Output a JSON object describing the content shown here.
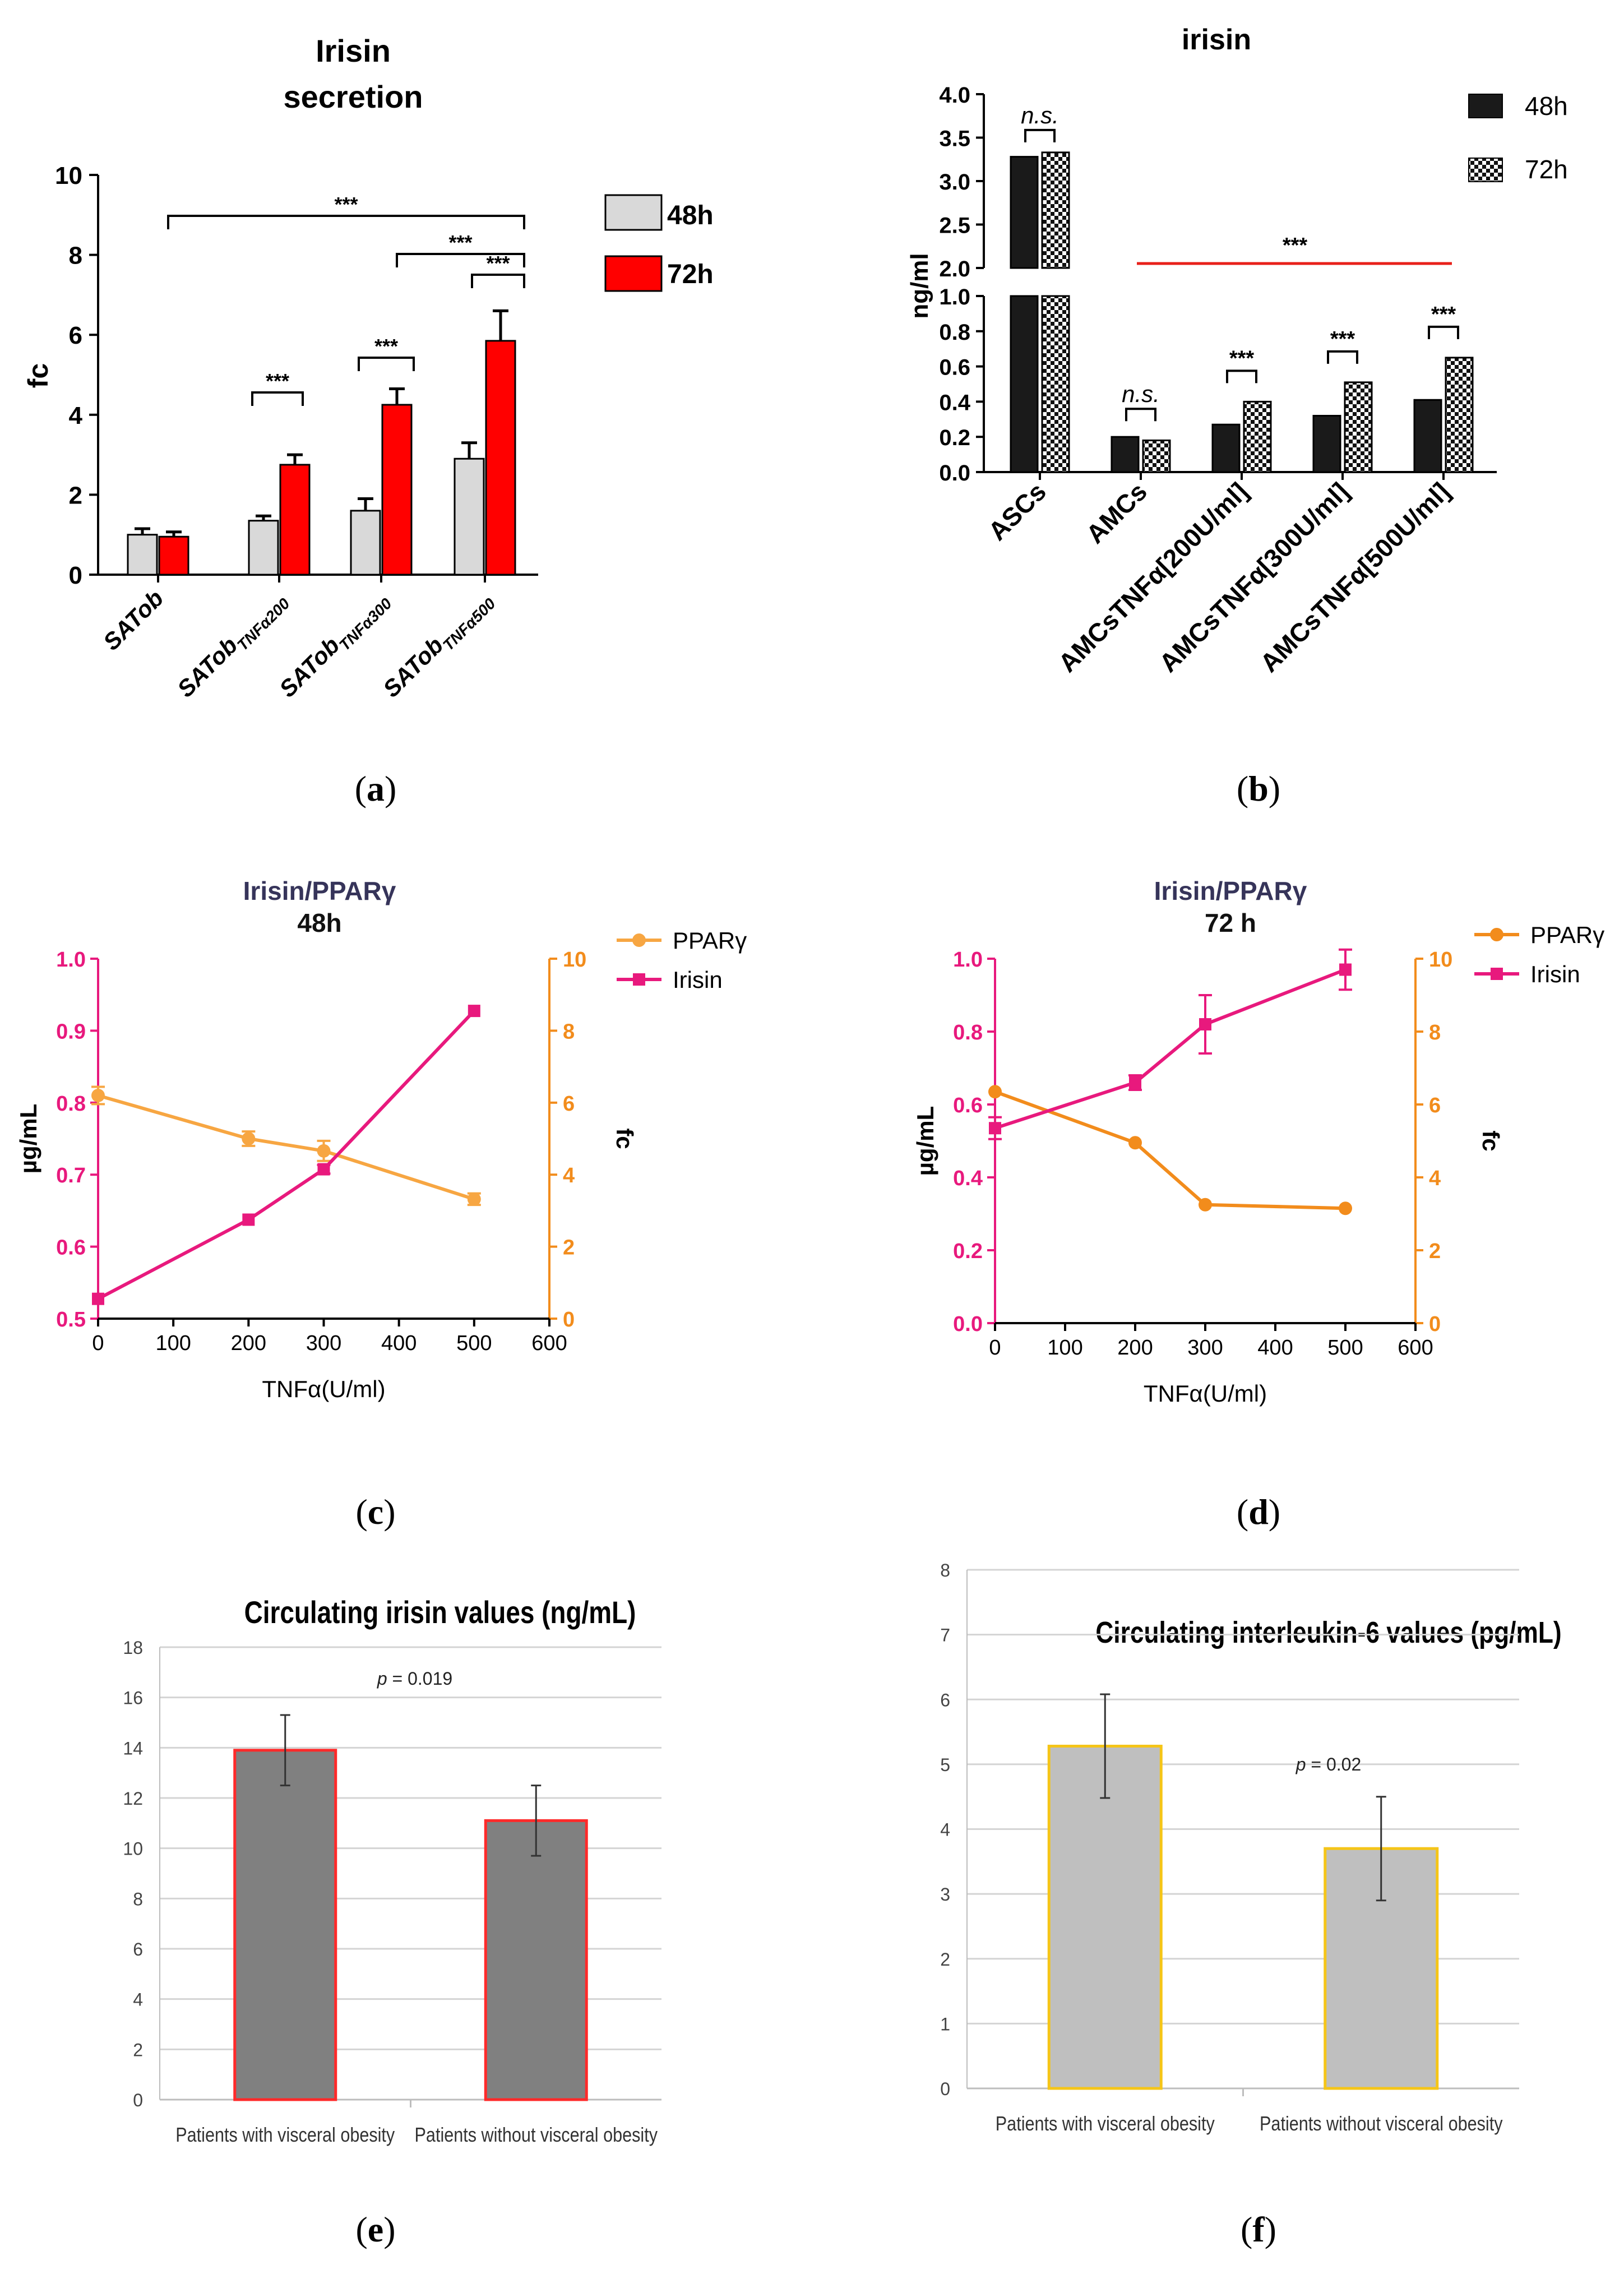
{
  "panels": {
    "a": {
      "caption_open": "(",
      "caption_letter": "a",
      "caption_close": ")",
      "chart_data": {
        "type": "bar",
        "title_line1": "Irisin",
        "title_line2": "secretion",
        "ylabel": "fc",
        "ylim": [
          0,
          10
        ],
        "yticks": [
          "0",
          "2",
          "4",
          "6",
          "8",
          "10"
        ],
        "categories": [
          "SATob",
          "SATobTNFα200",
          "SATobTNFα300",
          "SATobTNFα500"
        ],
        "category_main": [
          "SATob",
          "SATob",
          "SATob",
          "SATob"
        ],
        "category_sub": [
          "",
          "TNFα200",
          "TNFα300",
          "TNFα500"
        ],
        "series": [
          {
            "name": "48h",
            "color": "#d9d9d9",
            "values": [
              1.0,
              1.35,
              1.6,
              2.9
            ],
            "errors": [
              0.15,
              0.12,
              0.3,
              0.4
            ]
          },
          {
            "name": "72h",
            "color": "#ff0000",
            "values": [
              0.95,
              2.75,
              4.25,
              5.85
            ],
            "errors": [
              0.12,
              0.25,
              0.4,
              0.75
            ]
          }
        ],
        "sig_labels": [
          "***",
          "***",
          "***",
          "***",
          "***"
        ]
      }
    },
    "b": {
      "caption_open": "(",
      "caption_letter": "b",
      "caption_close": ")",
      "chart_data": {
        "type": "bar",
        "title": "irisin",
        "ylabel": "ng/ml",
        "yticks_upper": [
          "2.0",
          "2.5",
          "3.0",
          "3.5",
          "4.0"
        ],
        "yticks_lower": [
          "0.0",
          "0.2",
          "0.4",
          "0.6",
          "0.8",
          "1.0"
        ],
        "categories": [
          "ASCs",
          "AMCs",
          "AMCsTNFα[200U/ml]",
          "AMCsTNFα[300U/ml]",
          "AMCsTNFα[500U/ml]"
        ],
        "series": [
          {
            "name": "48h",
            "color": "#1a1a1a",
            "values": [
              3.28,
              0.2,
              0.27,
              0.32,
              0.41
            ]
          },
          {
            "name": "72h",
            "pattern": "checkered",
            "values": [
              3.33,
              0.18,
              0.4,
              0.51,
              0.65
            ]
          }
        ],
        "sig_labels": [
          "n.s.",
          "n.s.",
          "***",
          "***",
          "***",
          "***"
        ]
      }
    },
    "c": {
      "caption_open": "(",
      "caption_letter": "c",
      "caption_close": ")",
      "chart_data": {
        "type": "line",
        "title_line1": "Irisin/PPARγ",
        "title_line2": "48h",
        "xlabel": "TNFα(U/ml)",
        "ylabel_left": "µg/mL",
        "ylabel_right": "fc",
        "xticks": [
          "0",
          "100",
          "200",
          "300",
          "400",
          "500",
          "600"
        ],
        "yticks_left": [
          "0.5",
          "0.6",
          "0.7",
          "0.8",
          "0.9",
          "1.0"
        ],
        "yticks_right": [
          "0",
          "2",
          "4",
          "6",
          "8",
          "10"
        ],
        "xlim": [
          0,
          600
        ],
        "series": [
          {
            "name": "PPARγ",
            "axis": "left",
            "color": "#f7a642",
            "x": [
              0,
              200,
              300,
              500
            ],
            "y": [
              0.81,
              0.75,
              0.733,
              0.666
            ],
            "errors": [
              0.012,
              0.01,
              0.014,
              0.008
            ]
          },
          {
            "name": "Irisin",
            "axis": "right",
            "color": "#e8197d",
            "x": [
              0,
              200,
              300,
              500
            ],
            "y": [
              0.55,
              2.75,
              4.15,
              8.55
            ],
            "errors": [
              0,
              0,
              0.12,
              0
            ]
          }
        ]
      }
    },
    "d": {
      "caption_open": "(",
      "caption_letter": "d",
      "caption_close": ")",
      "chart_data": {
        "type": "line",
        "title_line1": "Irisin/PPARγ",
        "title_line2": "72 h",
        "xlabel": "TNFα(U/ml)",
        "ylabel_left": "µg/mL",
        "ylabel_right": "fc",
        "xticks": [
          "0",
          "100",
          "200",
          "300",
          "400",
          "500",
          "600"
        ],
        "yticks_left": [
          "0.0",
          "0.2",
          "0.4",
          "0.6",
          "0.8",
          "1.0"
        ],
        "yticks_right": [
          "0",
          "2",
          "4",
          "6",
          "8",
          "10"
        ],
        "xlim": [
          0,
          600
        ],
        "series": [
          {
            "name": "PPARγ",
            "axis": "left",
            "color": "#f28c1c",
            "x": [
              0,
              200,
              300,
              500
            ],
            "y": [
              0.635,
              0.495,
              0.325,
              0.315
            ],
            "errors": [
              0,
              0,
              0,
              0
            ]
          },
          {
            "name": "Irisin",
            "axis": "right",
            "color": "#e8197d",
            "x": [
              0,
              200,
              300,
              500
            ],
            "y": [
              5.35,
              6.6,
              8.2,
              9.7
            ],
            "errors": [
              0.3,
              0.2,
              0.8,
              0.55
            ]
          }
        ]
      }
    },
    "e": {
      "caption_open": "(",
      "caption_letter": "e",
      "caption_close": ")",
      "chart_data": {
        "type": "bar",
        "title": "Circulating irisin values (ng/mL)",
        "annotation_prefix": "p",
        "annotation_value": " = 0.019",
        "ylim": [
          0,
          18
        ],
        "yticks": [
          "0",
          "2",
          "4",
          "6",
          "8",
          "10",
          "12",
          "14",
          "16",
          "18"
        ],
        "categories": [
          "Patients with visceral obesity",
          "Patients without visceral obesity"
        ],
        "values": [
          13.9,
          11.1
        ],
        "errors": [
          1.4,
          1.4
        ],
        "bar_color": "#808080",
        "edge_color": "#ff2a2a"
      }
    },
    "f": {
      "caption_open": "(",
      "caption_letter": "f",
      "caption_close": ")",
      "chart_data": {
        "type": "bar",
        "title": "Circulating interleukin-6 values (pg/mL)",
        "annotation_prefix": "p",
        "annotation_value": " = 0.02",
        "ylim": [
          0,
          8
        ],
        "yticks": [
          "0",
          "1",
          "2",
          "3",
          "4",
          "5",
          "6",
          "7",
          "8"
        ],
        "categories": [
          "Patients with visceral obesity",
          "Patients without visceral obesity"
        ],
        "values": [
          5.28,
          3.7
        ],
        "errors": [
          0.8,
          0.8
        ],
        "bar_color": "#bfbfbf",
        "edge_color": "#f5c518"
      }
    }
  }
}
